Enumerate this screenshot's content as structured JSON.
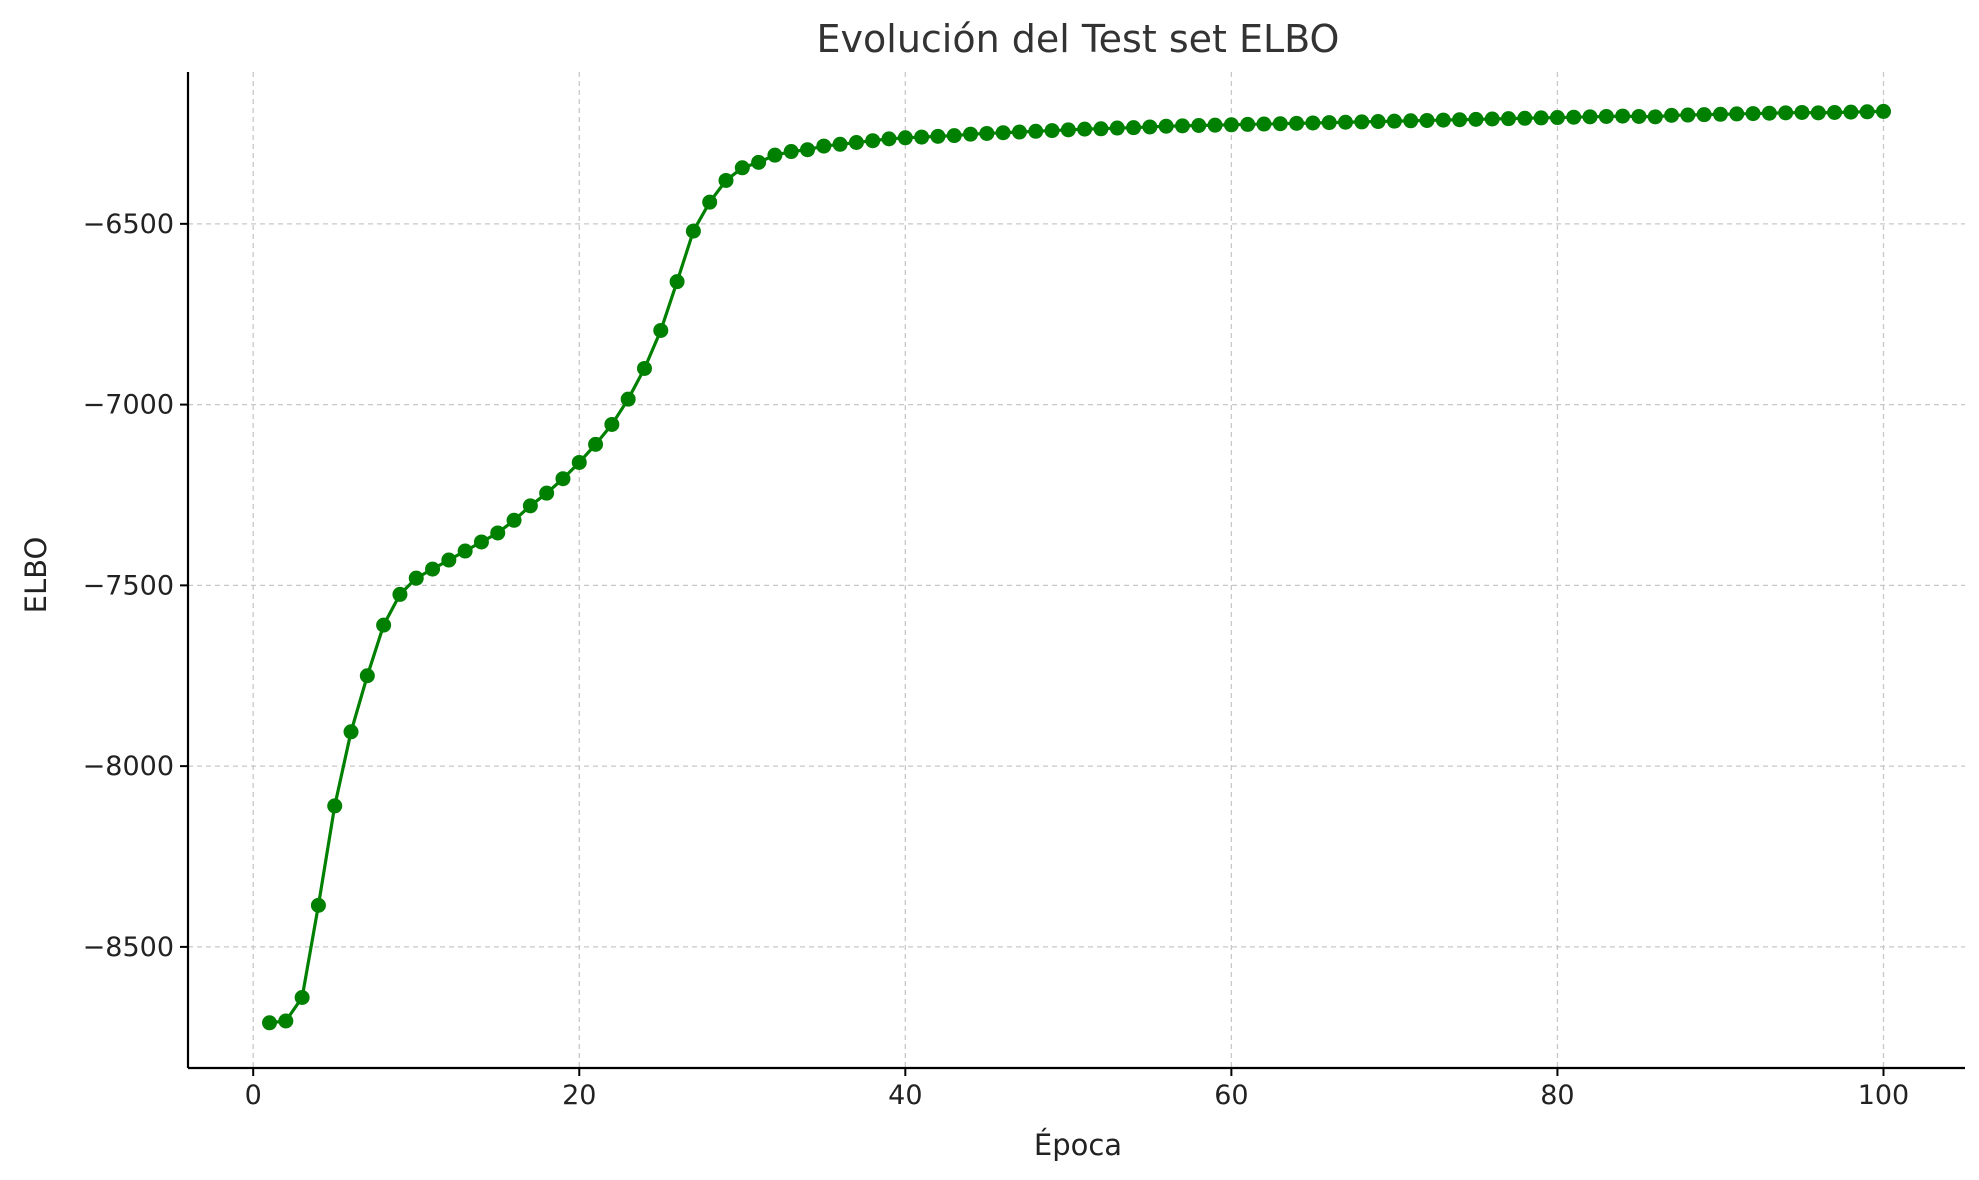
{
  "chart_data": {
    "type": "line",
    "title": "Evolución del Test set ELBO",
    "xlabel": "Época",
    "ylabel": "ELBO",
    "xlim": [
      -4,
      105
    ],
    "ylim": [
      -8835,
      -6080
    ],
    "xticks": [
      0,
      20,
      40,
      60,
      80,
      100
    ],
    "yticks": [
      -8500,
      -8000,
      -7500,
      -7000,
      -6500
    ],
    "xtick_labels": [
      "0",
      "20",
      "40",
      "60",
      "80",
      "100"
    ],
    "ytick_labels": [
      "−8500",
      "−8000",
      "−7500",
      "−7000",
      "−6500"
    ],
    "grid": true,
    "color": "#008000",
    "marker": "circle",
    "series": [
      {
        "x": [
          1,
          2,
          3,
          4,
          5,
          6,
          7,
          8,
          9,
          10,
          11,
          12,
          13,
          14,
          15,
          16,
          17,
          18,
          19,
          20,
          21,
          22,
          23,
          24,
          25,
          26,
          27,
          28,
          29,
          30,
          31,
          32,
          33,
          34,
          35,
          36,
          37,
          38,
          39,
          40,
          41,
          42,
          43,
          44,
          45,
          46,
          47,
          48,
          49,
          50,
          51,
          52,
          53,
          54,
          55,
          56,
          57,
          58,
          59,
          60,
          61,
          62,
          63,
          64,
          65,
          66,
          67,
          68,
          69,
          70,
          71,
          72,
          73,
          74,
          75,
          76,
          77,
          78,
          79,
          80,
          81,
          82,
          83,
          84,
          85,
          86,
          87,
          88,
          89,
          90,
          91,
          92,
          93,
          94,
          95,
          96,
          97,
          98,
          99,
          100
        ],
        "y": [
          -8710,
          -8705,
          -8640,
          -8385,
          -8110,
          -7905,
          -7750,
          -7610,
          -7525,
          -7480,
          -7455,
          -7430,
          -7405,
          -7380,
          -7355,
          -7320,
          -7280,
          -7245,
          -7205,
          -7160,
          -7110,
          -7055,
          -6985,
          -6900,
          -6795,
          -6660,
          -6520,
          -6440,
          -6380,
          -6345,
          -6330,
          -6310,
          -6300,
          -6295,
          -6285,
          -6280,
          -6275,
          -6270,
          -6265,
          -6262,
          -6260,
          -6258,
          -6256,
          -6252,
          -6250,
          -6248,
          -6246,
          -6244,
          -6242,
          -6240,
          -6238,
          -6237,
          -6235,
          -6234,
          -6232,
          -6230,
          -6229,
          -6228,
          -6227,
          -6226,
          -6225,
          -6224,
          -6223,
          -6222,
          -6221,
          -6220,
          -6219,
          -6218,
          -6217,
          -6216,
          -6215,
          -6214,
          -6213,
          -6212,
          -6211,
          -6210,
          -6209,
          -6208,
          -6207,
          -6206,
          -6205,
          -6204,
          -6203,
          -6202,
          -6203,
          -6204,
          -6200,
          -6199,
          -6198,
          -6197,
          -6196,
          -6195,
          -6194,
          -6193,
          -6192,
          -6193,
          -6192,
          -6191,
          -6190,
          -6189
        ]
      }
    ]
  }
}
